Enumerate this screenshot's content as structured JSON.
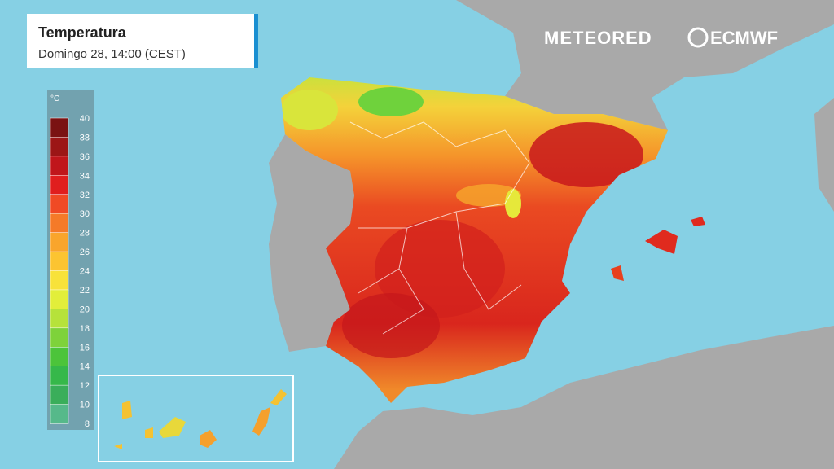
{
  "header": {
    "title": "Temperatura",
    "subtitle": "Domingo 28, 14:00 (CEST)"
  },
  "logos": [
    "METEORED",
    "ECMWF"
  ],
  "legend": {
    "unit": "°C",
    "ticks": [
      40,
      38,
      36,
      34,
      32,
      30,
      28,
      26,
      24,
      22,
      20,
      18,
      16,
      14,
      12,
      10,
      8
    ],
    "colors": [
      "#7a1212",
      "#9c1616",
      "#c0161b",
      "#e01e1e",
      "#f04a25",
      "#f57a28",
      "#f9a52c",
      "#fcc431",
      "#f8e23a",
      "#e2ee3a",
      "#b6e23a",
      "#7ed23a",
      "#4cc43a",
      "#36b84a",
      "#3aae5a",
      "#56b98a"
    ]
  }
}
